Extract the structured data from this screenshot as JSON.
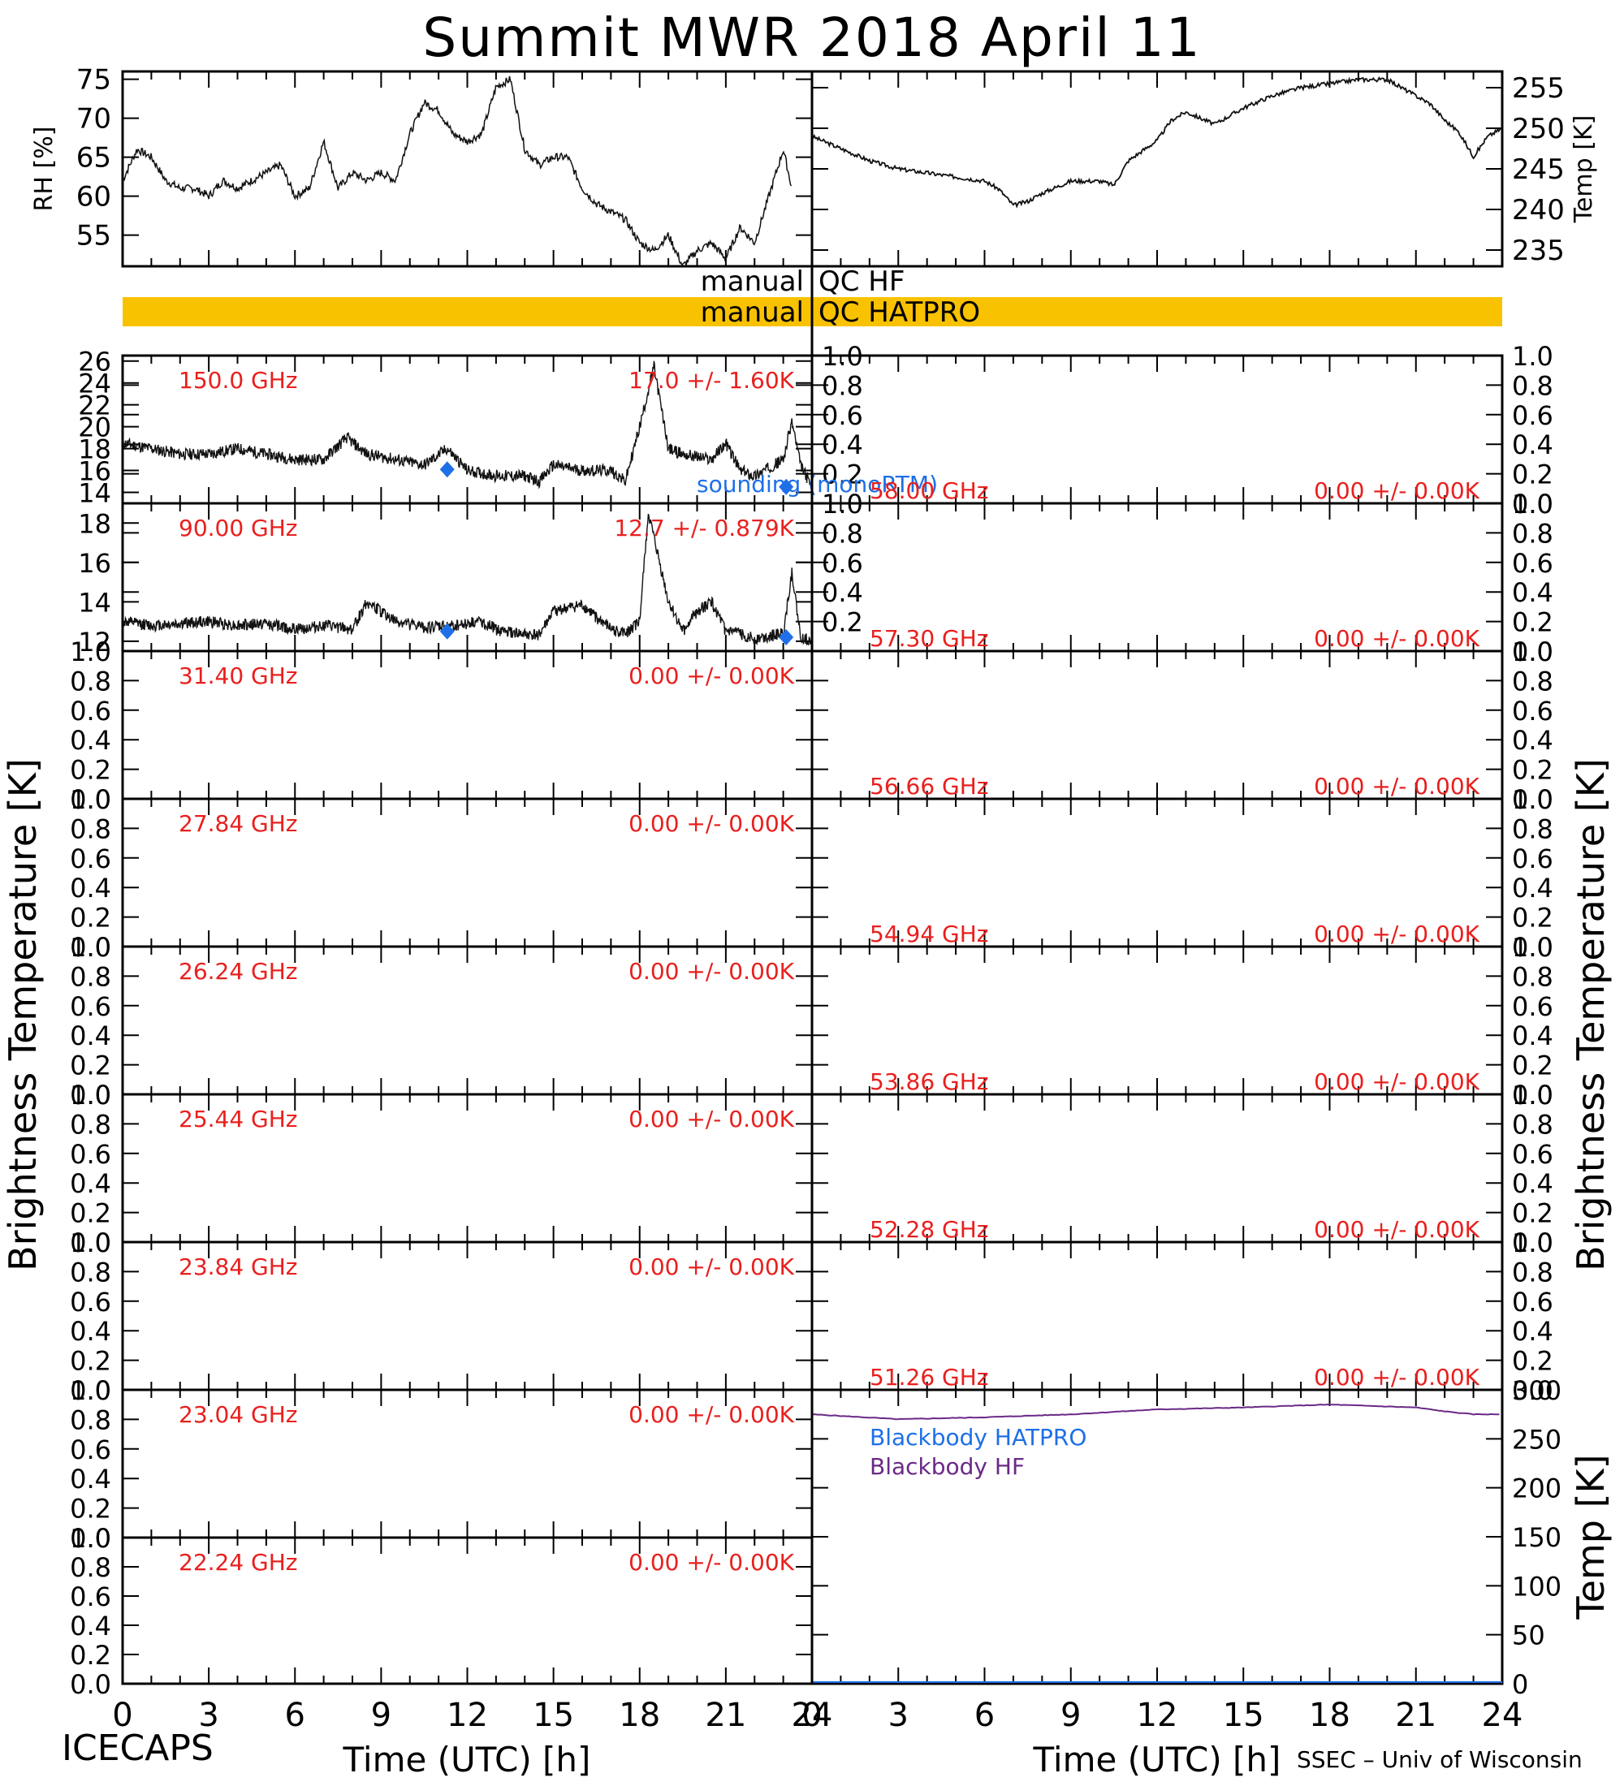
{
  "title": "Summit MWR 2018 April 11",
  "footer": {
    "left": "ICECAPS",
    "right": "SSEC – Univ of Wisconsin"
  },
  "colors": {
    "axis": "#000000",
    "data": "#111111",
    "qc_bar": "#f9c200",
    "freq_label": "#e8201e",
    "sounding": "#1e6fe8",
    "bb_hatpro": "#1e6fe8",
    "bb_hf": "#6a2a87"
  },
  "qc": {
    "hf_label": [
      "manual",
      "QC HF"
    ],
    "hatpro_label": [
      "manual",
      "QC HATPRO"
    ],
    "hf_flagged": false,
    "hatpro_flagged": true
  },
  "chart_data": [
    {
      "name": "rh",
      "type": "line",
      "ylabel": "RH [%]",
      "xlim": [
        0,
        23.5
      ],
      "ylim": [
        51,
        76
      ],
      "yticks": [
        55,
        60,
        65,
        70,
        75
      ],
      "x": [
        0,
        0.5,
        1,
        1.5,
        2,
        2.5,
        3,
        3.5,
        4,
        4.5,
        5,
        5.5,
        6,
        6.5,
        7,
        7.5,
        8,
        8.5,
        9,
        9.5,
        10,
        10.5,
        11,
        11.5,
        12,
        12.5,
        13,
        13.5,
        14,
        14.5,
        15,
        15.5,
        16,
        16.5,
        17,
        17.5,
        18,
        18.5,
        19,
        19.5,
        20,
        20.5,
        21,
        21.5,
        22,
        22.5,
        23,
        23.3
      ],
      "y": [
        62,
        66,
        65,
        62,
        61,
        61,
        60,
        62,
        61,
        62,
        63,
        64,
        60,
        61,
        67,
        61,
        63,
        62,
        63,
        62,
        68,
        72,
        71,
        68,
        67,
        68,
        74,
        75,
        66,
        64,
        65,
        65,
        61,
        59,
        58,
        57,
        54,
        53,
        55,
        51,
        53,
        54,
        52,
        56,
        54,
        60,
        66,
        61
      ]
    },
    {
      "name": "temp",
      "type": "line",
      "ylabel": "Temp [K]",
      "xlim": [
        0,
        24
      ],
      "ylim": [
        233,
        257
      ],
      "yticks": [
        235,
        240,
        245,
        250,
        255
      ],
      "x": [
        0,
        1,
        2,
        3,
        4,
        5,
        6,
        6.5,
        7,
        7.5,
        8,
        9,
        10,
        10.5,
        11,
        12,
        12.5,
        13,
        14,
        15,
        16,
        17,
        18,
        19,
        20,
        21,
        21.5,
        22,
        22.5,
        23,
        23.5,
        24
      ],
      "y": [
        249,
        247.5,
        246,
        245,
        244.5,
        244,
        243.5,
        242.5,
        240.5,
        241,
        242,
        243.5,
        243.5,
        243,
        246,
        248.5,
        251,
        252,
        250.5,
        252.5,
        254,
        255,
        255.5,
        256,
        256,
        254,
        253,
        251,
        249.5,
        246.5,
        249,
        250
      ]
    }
  ],
  "bt_panels": {
    "ylabel": "Brightness Temperature [K]",
    "left": [
      {
        "freq": "150.0 GHz",
        "stat": "17.0 +/-  1.60K",
        "ylim": [
          13,
          26.5
        ],
        "yticks": [
          14,
          16,
          18,
          20,
          22,
          24,
          26
        ],
        "x": [
          0,
          1,
          2,
          3,
          4,
          5,
          6,
          7,
          7.8,
          8.5,
          9.5,
          10.5,
          11.3,
          12,
          13,
          14,
          14.5,
          15,
          16,
          17,
          17.5,
          18,
          18.5,
          19,
          19.5,
          20.5,
          21,
          21.5,
          22,
          23,
          23.3,
          23.6,
          24
        ],
        "y": [
          18.5,
          18,
          17.5,
          17.5,
          18,
          17.5,
          17,
          17,
          19,
          17.5,
          17,
          16.5,
          18,
          16,
          15.5,
          15.5,
          15,
          16.5,
          16,
          16,
          15,
          20,
          25.5,
          18,
          17.5,
          17,
          18.5,
          16,
          15.5,
          17,
          20.5,
          16.5,
          14.5
        ],
        "sounding": {
          "label": "sounding (monoRTM)",
          "x": [
            11.3,
            23.1
          ],
          "y": [
            16.1,
            14.5
          ]
        }
      },
      {
        "freq": "90.00 GHz",
        "stat": "12.7 +/- 0.879K",
        "ylim": [
          11.5,
          19
        ],
        "yticks": [
          12,
          14,
          16,
          18
        ],
        "x": [
          0,
          1,
          2,
          3,
          4,
          5,
          6,
          7,
          8,
          8.5,
          9.5,
          10.5,
          11.5,
          12.5,
          13,
          14,
          14.5,
          15,
          16,
          17,
          17.5,
          18,
          18.3,
          19,
          19.5,
          20,
          20.5,
          21,
          21.5,
          22,
          23,
          23.3,
          23.6,
          24
        ],
        "y": [
          13,
          12.8,
          12.9,
          13,
          12.8,
          12.9,
          12.6,
          12.8,
          12.6,
          14,
          13,
          12.7,
          12.8,
          13,
          12.6,
          12.3,
          12.3,
          13.5,
          13.8,
          12.6,
          12.4,
          13,
          18.5,
          14,
          12.5,
          13.5,
          14,
          12.5,
          12.4,
          12.1,
          12.4,
          15.5,
          12.2,
          12.0
        ],
        "sounding": {
          "label": "",
          "x": [
            11.3,
            23.1
          ],
          "y": [
            12.5,
            12.2
          ]
        }
      },
      {
        "freq": "31.40 GHz",
        "stat": "0.00 +/-  0.00K"
      },
      {
        "freq": "27.84 GHz",
        "stat": "0.00 +/-  0.00K"
      },
      {
        "freq": "26.24 GHz",
        "stat": "0.00 +/-  0.00K"
      },
      {
        "freq": "25.44 GHz",
        "stat": "0.00 +/-  0.00K"
      },
      {
        "freq": "23.84 GHz",
        "stat": "0.00 +/-  0.00K"
      },
      {
        "freq": "23.04 GHz",
        "stat": "0.00 +/-  0.00K"
      },
      {
        "freq": "22.24 GHz",
        "stat": "0.00 +/-  0.00K"
      }
    ],
    "right": [
      {
        "freq": "58.00 GHz",
        "stat": "0.00 +/-  0.00K"
      },
      {
        "freq": "57.30 GHz",
        "stat": "0.00 +/-  0.00K"
      },
      {
        "freq": "56.66 GHz",
        "stat": "0.00 +/-  0.00K"
      },
      {
        "freq": "54.94 GHz",
        "stat": "0.00 +/-  0.00K"
      },
      {
        "freq": "53.86 GHz",
        "stat": "0.00 +/-  0.00K"
      },
      {
        "freq": "52.28 GHz",
        "stat": "0.00 +/-  0.00K"
      },
      {
        "freq": "51.26 GHz",
        "stat": "0.00 +/-  0.00K"
      }
    ],
    "empty_yticks": [
      "0.0",
      "0.2",
      "0.4",
      "0.6",
      "0.8",
      "1.0"
    ]
  },
  "blackbody": {
    "ylabel": "Temp [K]",
    "ylim": [
      0,
      300
    ],
    "yticks": [
      0,
      50,
      100,
      150,
      200,
      250,
      300
    ],
    "legend": [
      "Blackbody HATPRO",
      "Blackbody HF"
    ],
    "hf": {
      "x": [
        0,
        3,
        6,
        9,
        12,
        15,
        18,
        21,
        22,
        23,
        24
      ],
      "y": [
        275,
        270,
        272,
        275,
        280,
        282,
        285,
        282,
        278,
        275,
        275
      ]
    },
    "hatpro": {
      "x": [
        0,
        24
      ],
      "y": [
        0,
        0
      ]
    }
  },
  "xaxis": {
    "label": "Time (UTC) [h]",
    "ticks": [
      0,
      3,
      6,
      9,
      12,
      15,
      18,
      21,
      24
    ]
  }
}
